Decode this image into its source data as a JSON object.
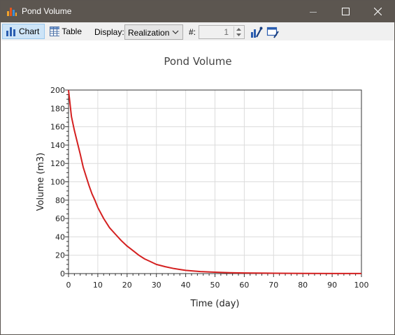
{
  "window": {
    "title": "Pond Volume",
    "colors": {
      "titlebar": "#5c5650",
      "toolbar": "#f0f0f0",
      "series": "#d42020"
    }
  },
  "toolbar": {
    "chart_label": "Chart",
    "table_label": "Table",
    "display_label": "Display:",
    "display_value": "Realization",
    "number_label": "#:",
    "number_value": "1",
    "icons": [
      "chart-properties-icon",
      "chart-style-icon"
    ]
  },
  "chart_data": {
    "type": "line",
    "title": "Pond Volume",
    "xlabel": "Time (day)",
    "ylabel": "Volume (m3)",
    "xlim": [
      0,
      100
    ],
    "ylim": [
      0,
      200
    ],
    "xticks": [
      0,
      10,
      20,
      30,
      40,
      50,
      60,
      70,
      80,
      90,
      100
    ],
    "yticks": [
      0,
      20,
      40,
      60,
      80,
      100,
      120,
      140,
      160,
      180,
      200
    ],
    "grid": true,
    "series": [
      {
        "color": "#d42020",
        "x": [
          0,
          1,
          2,
          3,
          4,
          5,
          6,
          7,
          8,
          9,
          10,
          12,
          14,
          16,
          18,
          20,
          22,
          24,
          26,
          28,
          30,
          33,
          36,
          40,
          45,
          50,
          55,
          60,
          70,
          80,
          90,
          100
        ],
        "y": [
          200,
          171,
          156,
          143,
          130,
          116,
          106,
          96,
          87,
          80,
          72,
          60,
          50,
          43,
          36,
          30,
          25,
          20,
          16,
          13,
          10,
          7.5,
          5.5,
          3.5,
          2.2,
          1.5,
          1.0,
          0.7,
          0.4,
          0.2,
          0.1,
          0.05
        ]
      }
    ]
  }
}
